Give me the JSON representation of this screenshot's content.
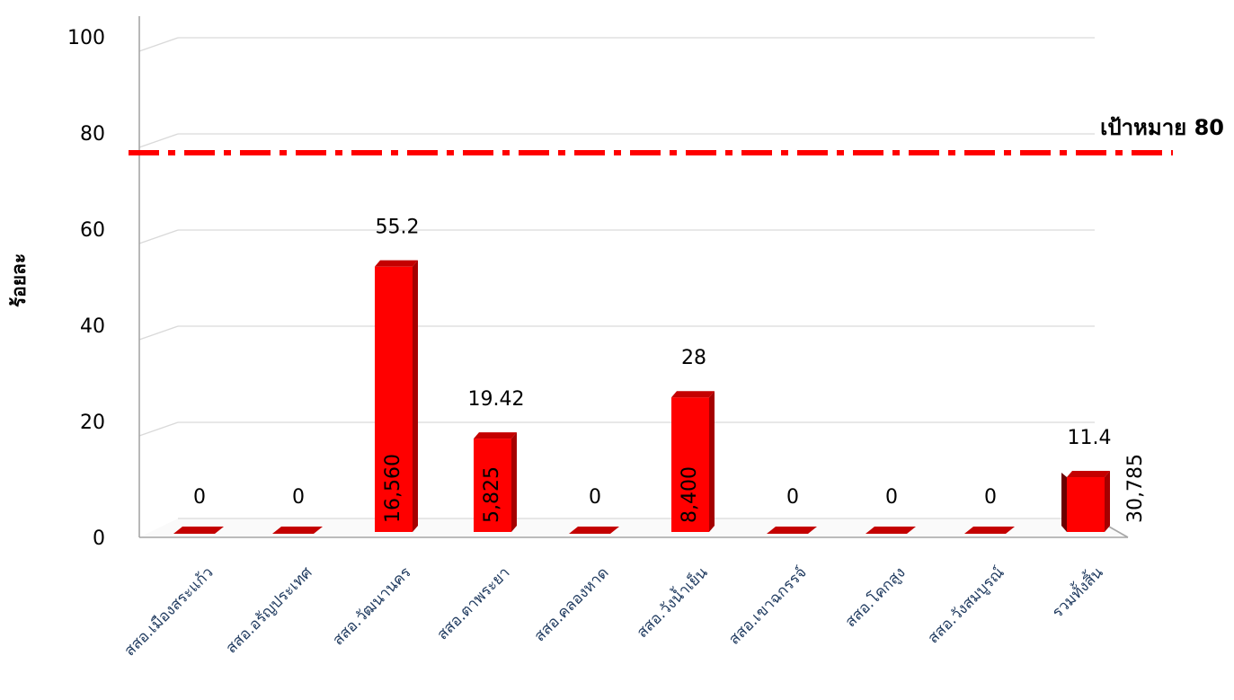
{
  "chart_data": {
    "type": "bar",
    "ylabel": "ร้อยละ",
    "ylim": [
      0,
      100
    ],
    "yticks": [
      "0",
      "20",
      "40",
      "60",
      "80",
      "100"
    ],
    "grid": true,
    "categories": [
      "สสอ.เมืองสระแก้ว",
      "สสอ.อรัญประเทศ",
      "สสอ.วัฒนานคร",
      "สสอ.ตาพระยา",
      "สสอ.คลองหาด",
      "สสอ.วังน้ำเย็น",
      "สสอ.เขาฉกรรจ์",
      "สสอ.โคกสูง",
      "สสอ.วังสมบูรณ์",
      "รวมทั้งสิ้น"
    ],
    "series": [
      {
        "values": [
          0,
          0,
          55.2,
          19.42,
          0,
          28,
          0,
          0,
          0,
          11.4
        ],
        "value_labels": [
          "0",
          "0",
          "55.2",
          "19.42",
          "0",
          "28",
          "0",
          "0",
          "0",
          "11.4"
        ],
        "count_labels": [
          "",
          "",
          "16,560",
          "5,825",
          "",
          "8,400",
          "",
          "",
          "",
          "30,785"
        ],
        "color": "#ff0000"
      }
    ],
    "target": {
      "value": 80,
      "label": "เป้าหมาย 80",
      "color": "#ff0000",
      "style": "dash-dot"
    }
  }
}
